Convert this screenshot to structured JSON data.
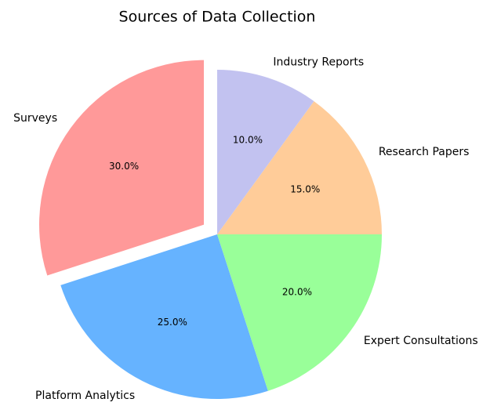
{
  "chart_data": {
    "type": "pie",
    "title": "Sources of Data Collection",
    "categories": [
      "Surveys",
      "Platform Analytics",
      "Expert Consultations",
      "Research Papers",
      "Industry Reports"
    ],
    "values": [
      30,
      25,
      20,
      15,
      10
    ],
    "value_labels": [
      "30.0%",
      "25.0%",
      "20.0%",
      "15.0%",
      "10.0%"
    ],
    "colors": [
      "#ff9999",
      "#66b3ff",
      "#99ff99",
      "#ffcc99",
      "#c2c2f0"
    ],
    "explode": [
      0.1,
      0,
      0,
      0,
      0
    ],
    "startangle": 90
  }
}
